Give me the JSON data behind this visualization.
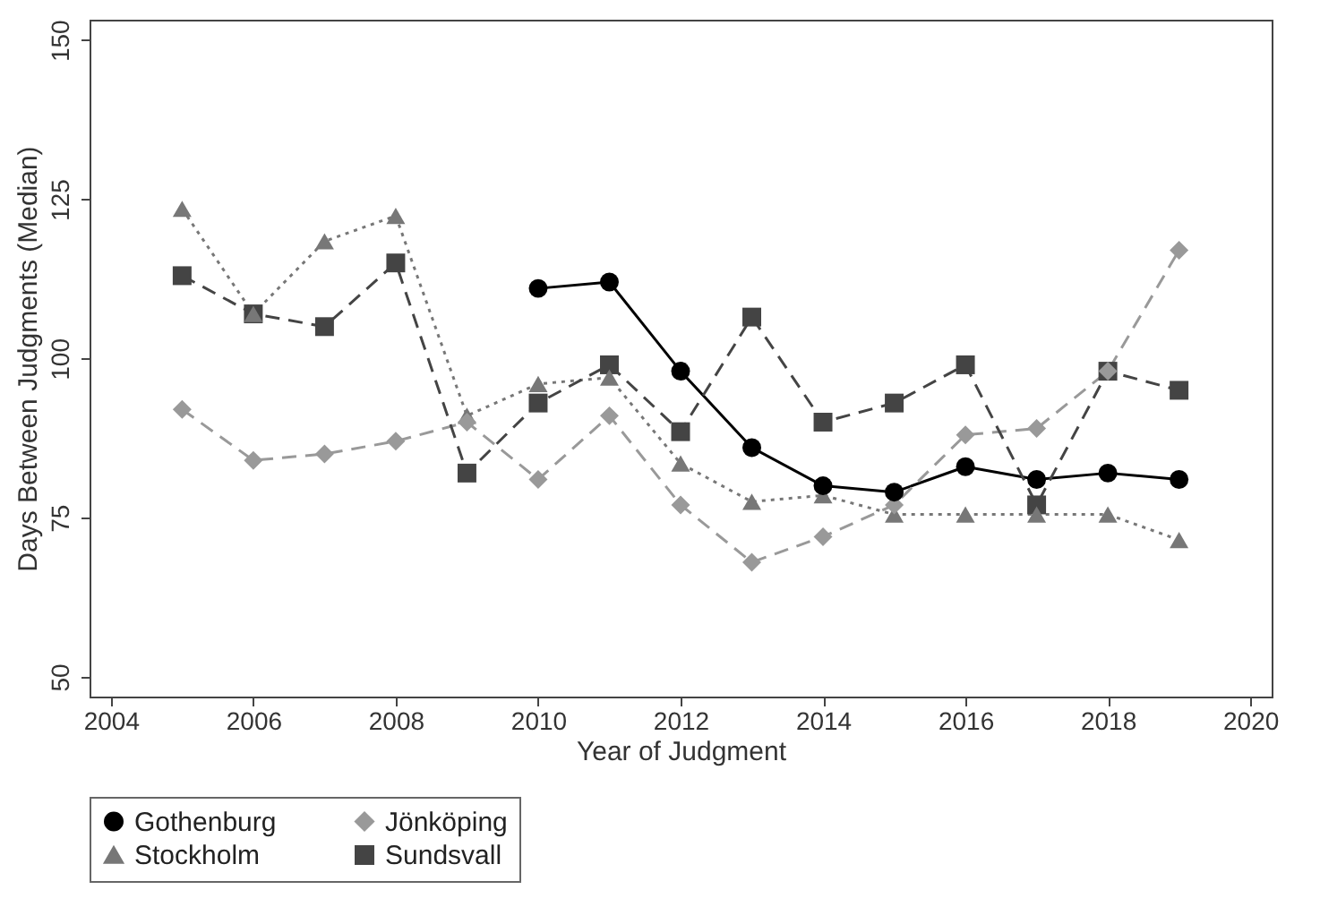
{
  "chart_data": {
    "type": "line",
    "xlabel": "Year of Judgment",
    "ylabel": "Days Between Judgments (Median)",
    "x": [
      2005,
      2006,
      2007,
      2008,
      2009,
      2010,
      2011,
      2012,
      2013,
      2014,
      2015,
      2016,
      2017,
      2018,
      2019
    ],
    "xlim": [
      2003.7,
      2020.3
    ],
    "xticks": [
      2004,
      2006,
      2008,
      2010,
      2012,
      2014,
      2016,
      2018,
      2020
    ],
    "ylim": [
      46.9,
      153.2
    ],
    "yticks": [
      50,
      75,
      100,
      125,
      150
    ],
    "grid": false,
    "legend": "bottom",
    "series": [
      {
        "name": "Gothenburg",
        "color": "#000000",
        "marker": "circle",
        "line_style": "solid",
        "values": [
          null,
          null,
          null,
          null,
          null,
          111,
          112,
          98,
          86,
          80,
          79,
          83,
          81,
          82,
          81
        ]
      },
      {
        "name": "Jönköping",
        "color": "#999999",
        "marker": "diamond",
        "line_style": "dashed",
        "values": [
          92,
          84,
          85,
          87,
          90,
          81,
          91,
          77,
          68,
          72,
          77,
          88,
          89,
          98,
          117
        ]
      },
      {
        "name": "Stockholm",
        "color": "#777777",
        "marker": "triangle",
        "line_style": "dotted",
        "values": [
          123.5,
          107,
          118.4,
          122.4,
          91,
          96,
          97,
          83.5,
          77.5,
          78.5,
          75.5,
          75.5,
          75.5,
          75.5,
          71.5
        ]
      },
      {
        "name": "Sundsvall",
        "color": "#444444",
        "marker": "square",
        "line_style": "dashed",
        "values": [
          113,
          107,
          105,
          115,
          82,
          93,
          99,
          88.5,
          106.5,
          90,
          93,
          99,
          77,
          98,
          95
        ]
      }
    ]
  }
}
